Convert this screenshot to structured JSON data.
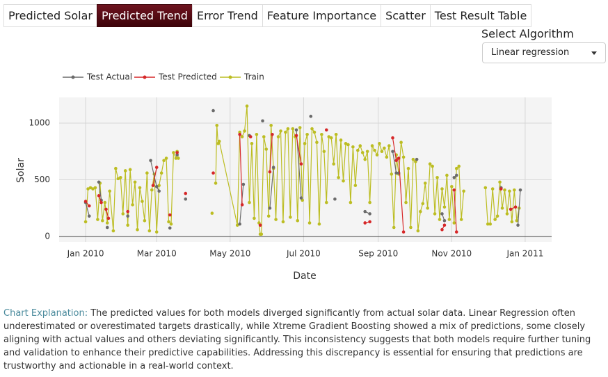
{
  "tabs": [
    "Predicted Solar",
    "Predicted Trend",
    "Error Trend",
    "Feature Importance",
    "Scatter",
    "Test Result Table"
  ],
  "select_label": "Select Algorithm",
  "dropdown_value": "Linear regression",
  "chart_data": {
    "type": "line",
    "xlabel": "Date",
    "ylabel": "Solar",
    "xlim": [
      "2009-12-10",
      "2011-01-23"
    ],
    "xticks": [
      {
        "value": "2010-01-01",
        "label": "Jan 2010"
      },
      {
        "value": "2010-03-01",
        "label": "Mar 2010"
      },
      {
        "value": "2010-05-01",
        "label": "May 2010"
      },
      {
        "value": "2010-07-01",
        "label": "Jul 2010"
      },
      {
        "value": "2010-09-01",
        "label": "Sep 2010"
      },
      {
        "value": "2010-11-01",
        "label": "Nov 2010"
      },
      {
        "value": "2011-01-01",
        "label": "Jan 2011"
      }
    ],
    "ylim": [
      -49,
      1227
    ],
    "yticks": [
      0,
      500,
      1000
    ],
    "grid": true,
    "legend": "top-left",
    "series": [
      {
        "name": "Test Actual",
        "color": "#6b6b6b",
        "x": [
          "2010-01-01",
          "2010-01-04",
          null,
          "2010-01-12",
          "2010-01-14",
          null,
          "2010-01-19",
          null,
          "2010-02-05",
          null,
          "2010-02-24",
          "2010-03-01",
          "2010-03-03",
          null,
          "2010-03-12",
          null,
          "2010-03-18",
          null,
          "2010-03-25",
          null,
          "2010-04-17",
          null,
          "2010-05-09",
          "2010-05-12",
          null,
          "2010-05-17",
          null,
          "2010-05-28",
          null,
          "2010-06-03",
          "2010-06-06",
          null,
          "2010-06-25",
          "2010-06-29",
          null,
          "2010-07-07",
          null,
          "2010-07-27",
          null,
          "2010-08-21",
          "2010-08-25",
          null,
          "2010-09-13",
          "2010-09-16",
          "2010-09-18",
          null,
          "2010-10-03",
          null,
          "2010-10-24",
          "2010-10-26",
          null,
          "2010-11-03",
          "2010-11-05",
          null,
          "2010-12-12",
          null,
          "2010-12-26",
          "2010-12-28"
        ],
        "values": [
          300,
          180,
          null,
          480,
          320,
          null,
          80,
          null,
          180,
          null,
          670,
          440,
          400,
          null,
          75,
          null,
          720,
          null,
          330,
          null,
          1110,
          null,
          110,
          460,
          null,
          890,
          null,
          1020,
          null,
          250,
          610,
          null,
          940,
          340,
          null,
          1060,
          null,
          330,
          null,
          220,
          200,
          null,
          750,
          560,
          560,
          null,
          680,
          null,
          200,
          140,
          null,
          520,
          540,
          null,
          430,
          null,
          100,
          410
        ]
      },
      {
        "name": "Test Predicted",
        "color": "#d62728",
        "x": [
          "2010-01-01",
          "2010-01-04",
          null,
          "2010-01-12",
          "2010-01-14",
          null,
          "2010-01-18",
          "2010-01-20",
          null,
          "2010-02-05",
          null,
          "2010-02-26",
          "2010-03-01",
          null,
          "2010-03-12",
          null,
          "2010-03-18",
          null,
          "2010-03-25",
          null,
          "2010-04-17",
          null,
          "2010-05-09",
          "2010-05-11",
          null,
          "2010-05-18",
          null,
          "2010-05-26",
          null,
          "2010-06-03",
          "2010-06-05",
          null,
          "2010-06-25",
          "2010-06-29",
          null,
          "2010-07-20",
          null,
          "2010-08-21",
          "2010-08-25",
          null,
          "2010-09-13",
          "2010-09-16",
          "2010-09-18",
          "2010-09-22",
          null,
          "2010-10-24",
          "2010-10-26",
          null,
          "2010-11-03",
          "2010-11-05",
          null,
          "2010-12-12",
          null,
          "2010-12-20",
          "2010-12-24"
        ],
        "values": [
          310,
          270,
          null,
          360,
          300,
          null,
          240,
          160,
          null,
          220,
          null,
          450,
          610,
          null,
          190,
          null,
          740,
          null,
          380,
          null,
          560,
          null,
          900,
          280,
          null,
          880,
          null,
          100,
          null,
          570,
          900,
          null,
          890,
          640,
          null,
          940,
          null,
          120,
          130,
          null,
          870,
          670,
          690,
          40,
          null,
          60,
          100,
          null,
          410,
          40,
          null,
          420,
          null,
          240,
          260
        ]
      },
      {
        "name": "Train",
        "color": "#bcbd22",
        "x": [
          "2010-01-01",
          "2010-01-03",
          "2010-01-05",
          "2010-01-07",
          "2010-01-09",
          "2010-01-11",
          "2010-01-13",
          "2010-01-15",
          "2010-01-17",
          "2010-01-19",
          "2010-01-21",
          "2010-01-24",
          "2010-01-26",
          "2010-01-28",
          "2010-01-30",
          "2010-02-01",
          "2010-02-03",
          "2010-02-05",
          "2010-02-07",
          "2010-02-09",
          "2010-02-11",
          "2010-02-13",
          "2010-02-15",
          "2010-02-17",
          "2010-02-19",
          "2010-02-21",
          "2010-02-23",
          "2010-02-25",
          "2010-02-27",
          "2010-03-01",
          "2010-03-03",
          "2010-03-05",
          "2010-03-07",
          "2010-03-09",
          "2010-03-11",
          "2010-03-13",
          "2010-03-15",
          "2010-03-17",
          "2010-03-18",
          "2010-03-19",
          null,
          "2010-04-16",
          null,
          "2010-04-19",
          "2010-04-20",
          "2010-04-21",
          "2010-04-22",
          "2010-05-07",
          "2010-05-09",
          "2010-05-11",
          "2010-05-13",
          "2010-05-15",
          "2010-05-17",
          "2010-05-19",
          "2010-05-21",
          "2010-05-23",
          "2010-05-25",
          "2010-05-26",
          "2010-05-27",
          "2010-05-29",
          "2010-05-31",
          "2010-06-02",
          "2010-06-04",
          "2010-06-06",
          "2010-06-08",
          "2010-06-10",
          "2010-06-12",
          "2010-06-14",
          "2010-06-16",
          "2010-06-18",
          "2010-06-20",
          "2010-06-22",
          "2010-06-24",
          "2010-06-26",
          "2010-06-28",
          "2010-06-30",
          "2010-07-02",
          "2010-07-04",
          "2010-07-06",
          "2010-07-08",
          "2010-07-10",
          "2010-07-12",
          "2010-07-14",
          "2010-07-16",
          "2010-07-18",
          "2010-07-20",
          "2010-07-22",
          "2010-07-24",
          "2010-07-26",
          "2010-07-28",
          "2010-07-30",
          "2010-08-01",
          "2010-08-03",
          "2010-08-05",
          "2010-08-07",
          "2010-08-09",
          "2010-08-11",
          "2010-08-13",
          "2010-08-15",
          "2010-08-17",
          "2010-08-19",
          "2010-08-21",
          "2010-08-23",
          "2010-08-25",
          "2010-08-27",
          "2010-08-29",
          "2010-08-31",
          "2010-09-02",
          "2010-09-04",
          "2010-09-06",
          "2010-09-08",
          "2010-09-10",
          "2010-09-12",
          "2010-09-14",
          "2010-09-16",
          "2010-09-18",
          "2010-09-20",
          "2010-09-22",
          "2010-09-24",
          "2010-09-26",
          "2010-09-28",
          "2010-09-30",
          "2010-10-02",
          "2010-10-04",
          "2010-10-06",
          "2010-10-08",
          "2010-10-10",
          "2010-10-12",
          "2010-10-14",
          "2010-10-16",
          "2010-10-18",
          "2010-10-20",
          "2010-10-22",
          "2010-10-24",
          "2010-10-26",
          "2010-10-28",
          "2010-10-30",
          "2010-11-01",
          "2010-11-03",
          "2010-11-05",
          "2010-11-07",
          "2010-11-09",
          "2010-11-11",
          null,
          "2010-11-29",
          "2010-12-01",
          "2010-12-03",
          "2010-12-05",
          "2010-12-07",
          "2010-12-09",
          "2010-12-11",
          "2010-12-13",
          "2010-12-15",
          "2010-12-17",
          "2010-12-19",
          "2010-12-21",
          "2010-12-23",
          "2010-12-25",
          "2010-12-27"
        ],
        "values": [
          130,
          420,
          430,
          420,
          430,
          150,
          470,
          140,
          300,
          120,
          400,
          50,
          600,
          510,
          520,
          200,
          580,
          100,
          590,
          280,
          480,
          60,
          430,
          310,
          140,
          560,
          50,
          410,
          550,
          40,
          450,
          560,
          670,
          690,
          130,
          110,
          740,
          690,
          750,
          690,
          null,
          205,
          null,
          470,
          980,
          820,
          840,
          100,
          920,
          880,
          930,
          1150,
          300,
          820,
          160,
          900,
          120,
          20,
          20,
          880,
          770,
          180,
          980,
          600,
          150,
          880,
          930,
          130,
          920,
          950,
          170,
          950,
          880,
          140,
          960,
          320,
          820,
          900,
          120,
          950,
          920,
          830,
          110,
          900,
          750,
          300,
          880,
          870,
          640,
          900,
          520,
          850,
          490,
          820,
          810,
          300,
          790,
          450,
          760,
          800,
          740,
          680,
          750,
          300,
          800,
          760,
          720,
          820,
          750,
          780,
          700,
          800,
          550,
          80,
          720,
          550,
          830,
          700,
          300,
          600,
          80,
          680,
          660,
          50,
          220,
          290,
          470,
          250,
          640,
          620,
          200,
          520,
          150,
          420,
          260,
          540,
          150,
          440,
          120,
          600,
          620,
          150,
          400,
          null,
          430,
          110,
          110,
          420,
          150,
          180,
          480,
          250,
          410,
          200,
          400,
          130,
          410,
          140,
          250
        ]
      }
    ]
  },
  "explanation": {
    "label": "Chart Explanation:",
    "text": "The predicted values for both models diverged significantly from actual solar data. Linear Regression often underestimated or overestimated targets drastically, while Xtreme Gradient Boosting showed a mix of predictions, some closely aligning with actual values and others deviating significantly. This inconsistency suggests that both models require further tuning and validation to enhance their predictive capabilities. Addressing this discrepancy is essential for ensuring that predictions are trustworthy and actionable in a real-world context."
  }
}
